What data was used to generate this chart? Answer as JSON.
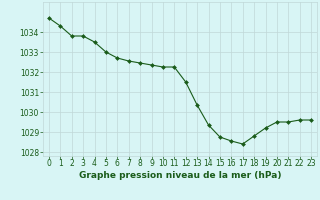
{
  "x": [
    0,
    1,
    2,
    3,
    4,
    5,
    6,
    7,
    8,
    9,
    10,
    11,
    12,
    13,
    14,
    15,
    16,
    17,
    18,
    19,
    20,
    21,
    22,
    23
  ],
  "y": [
    1034.7,
    1034.3,
    1033.8,
    1033.8,
    1033.5,
    1033.0,
    1032.7,
    1032.55,
    1032.45,
    1032.35,
    1032.25,
    1032.25,
    1031.5,
    1030.35,
    1029.35,
    1028.75,
    1028.55,
    1028.4,
    1028.8,
    1029.2,
    1029.5,
    1029.5,
    1029.6,
    1029.6
  ],
  "ylim": [
    1027.8,
    1035.5
  ],
  "yticks": [
    1028,
    1029,
    1030,
    1031,
    1032,
    1033,
    1034
  ],
  "xlim": [
    -0.5,
    23.5
  ],
  "xticks": [
    0,
    1,
    2,
    3,
    4,
    5,
    6,
    7,
    8,
    9,
    10,
    11,
    12,
    13,
    14,
    15,
    16,
    17,
    18,
    19,
    20,
    21,
    22,
    23
  ],
  "line_color": "#1a5c1a",
  "marker": "D",
  "marker_size": 2.0,
  "bg_color": "#d8f5f5",
  "grid_color": "#c0d8d8",
  "xlabel": "Graphe pression niveau de la mer (hPa)",
  "xlabel_color": "#1a5c1a",
  "xlabel_fontsize": 6.5,
  "tick_fontsize": 5.5,
  "tick_color": "#1a5c1a"
}
